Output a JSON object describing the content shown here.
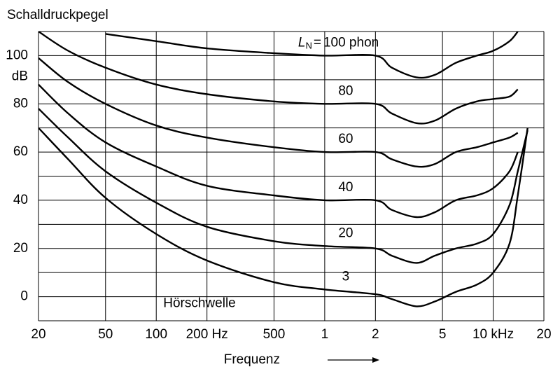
{
  "chart_data": {
    "type": "line",
    "title": "Schalldruckpegel",
    "xlabel": "Frequenz",
    "yunit": "dB",
    "xscale": "log",
    "grid": true,
    "xlim": [
      20,
      20000
    ],
    "ylim": [
      -10,
      110
    ],
    "xticks": [
      20,
      50,
      100,
      {
        "value": 200,
        "label": "200 Hz"
      },
      500,
      {
        "value": 1000,
        "label": "1"
      },
      {
        "value": 2000,
        "label": "2"
      },
      {
        "value": 5000,
        "label": "5"
      },
      {
        "value": 10000,
        "label": "10 kHz"
      },
      {
        "value": 20000,
        "label": "20"
      }
    ],
    "yticks": [
      0,
      20,
      40,
      60,
      80,
      100
    ],
    "yminorticks": [
      -10,
      10,
      30,
      50,
      70,
      90,
      110
    ],
    "label_prefix": {
      "symbol": "L",
      "subscript": "N",
      "sign": "="
    },
    "annotation": "Hörschwelle",
    "x": [
      20,
      30,
      50,
      100,
      200,
      500,
      1000,
      2000,
      2500,
      3500,
      4500,
      6000,
      8000,
      10000,
      12500,
      14000,
      16000
    ],
    "series": [
      {
        "name": "100 phon",
        "color": "#000000",
        "values": [
          null,
          null,
          109,
          106,
          103,
          101,
          100,
          100,
          95,
          91,
          92,
          97,
          100,
          102,
          106,
          110,
          null
        ]
      },
      {
        "name": "80",
        "color": "#000000",
        "values": [
          110,
          102,
          95,
          88,
          84,
          81,
          80,
          80,
          76,
          72,
          73,
          78,
          81,
          82,
          83,
          86,
          null
        ]
      },
      {
        "name": "60",
        "color": "#000000",
        "values": [
          99,
          89,
          80,
          71,
          66,
          62,
          60,
          60,
          57,
          54,
          55,
          60,
          62,
          64,
          66,
          68,
          null
        ]
      },
      {
        "name": "40",
        "color": "#000000",
        "values": [
          88,
          76,
          64,
          54,
          46,
          42,
          40,
          40,
          36,
          33,
          35,
          40,
          42,
          45,
          52,
          60,
          null
        ]
      },
      {
        "name": "20",
        "color": "#000000",
        "values": [
          78,
          66,
          52,
          39,
          29,
          23,
          21,
          20,
          17,
          14,
          17,
          20,
          22,
          26,
          38,
          52,
          69
        ]
      },
      {
        "name": "3",
        "color": "#000000",
        "values": [
          70,
          57,
          41,
          26,
          15,
          6,
          3,
          1,
          -1,
          -4,
          -2,
          2,
          5,
          10,
          22,
          42,
          70
        ]
      }
    ]
  }
}
